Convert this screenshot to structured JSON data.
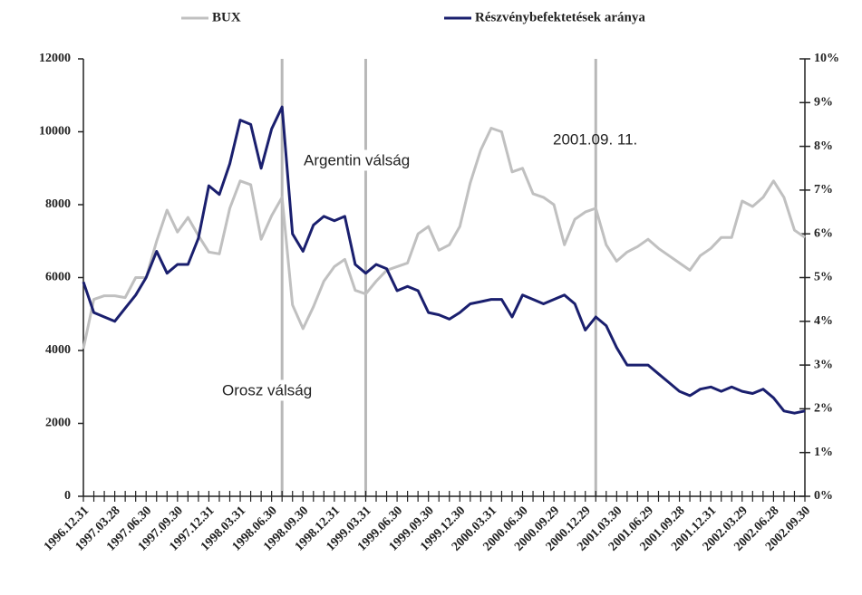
{
  "chart_data": {
    "type": "line",
    "categories": [
      "1996.12.31",
      null,
      null,
      "1997.03.28",
      null,
      null,
      "1997.06.30",
      null,
      null,
      "1997.09.30",
      null,
      null,
      "1997.12.31",
      null,
      null,
      "1998.03.31",
      null,
      null,
      "1998.06.30",
      null,
      null,
      "1998.09.30",
      null,
      null,
      "1998.12.31",
      null,
      null,
      "1999.03.31",
      null,
      null,
      "1999.06.30",
      null,
      null,
      "1999.09.30",
      null,
      null,
      "1999.12.30",
      null,
      null,
      "2000.03.31",
      null,
      null,
      "2000.06.30",
      null,
      null,
      "2000.09.29",
      null,
      null,
      "2000.12.29",
      null,
      null,
      "2001.03.30",
      null,
      null,
      "2001.06.29",
      null,
      null,
      "2001.09.28",
      null,
      null,
      "2001.12.31",
      null,
      null,
      "2002.03.29",
      null,
      null,
      "2002.06.28",
      null,
      null,
      "2002.09.30"
    ],
    "series": [
      {
        "name": "BUX",
        "color": "#c0c0c0",
        "values": [
          4050,
          5400,
          5500,
          5500,
          5450,
          6000,
          6000,
          7000,
          7850,
          7250,
          7650,
          7150,
          6700,
          6650,
          7900,
          8650,
          8550,
          7050,
          7700,
          8200,
          5250,
          4600,
          5200,
          5900,
          6300,
          6500,
          5650,
          5550,
          5900,
          6200,
          6300,
          6400,
          7200,
          7400,
          6750,
          6900,
          7400,
          8600,
          9500,
          10100,
          10000,
          8900,
          9000,
          8300,
          8200,
          8000,
          6900,
          7600,
          7800,
          7900,
          6900,
          6450,
          6700,
          6850,
          7050,
          6800,
          6600,
          6400,
          6200,
          6600,
          6800,
          7100,
          7100,
          8100,
          7950,
          8200,
          8650,
          8200,
          7300,
          7100
        ]
      },
      {
        "name": "Részvénybefektetések aránya",
        "color": "#1a1f6e",
        "axis": "y2",
        "values": [
          4.9,
          4.2,
          4.1,
          4.0,
          4.3,
          4.6,
          5.0,
          5.6,
          5.1,
          5.3,
          5.3,
          5.9,
          7.1,
          6.9,
          7.6,
          8.6,
          8.5,
          7.5,
          8.4,
          8.9,
          6.0,
          5.6,
          6.2,
          6.4,
          6.3,
          6.4,
          5.3,
          5.1,
          5.3,
          5.2,
          4.7,
          4.8,
          4.7,
          4.2,
          4.15,
          4.05,
          4.2,
          4.4,
          4.45,
          4.5,
          4.5,
          4.1,
          4.6,
          4.5,
          4.4,
          4.5,
          4.6,
          4.4,
          3.8,
          4.1,
          3.9,
          3.4,
          3.0,
          3.0,
          3.0,
          2.8,
          2.6,
          2.4,
          2.3,
          2.45,
          2.5,
          2.4,
          2.5,
          2.4,
          2.35,
          2.45,
          2.25,
          1.95,
          1.9,
          1.95
        ]
      }
    ],
    "ylim": [
      0,
      12000
    ],
    "yticks": [
      0,
      2000,
      4000,
      6000,
      8000,
      10000,
      12000
    ],
    "y2lim": [
      0,
      10
    ],
    "y2ticks": [
      {
        "value": 0,
        "label": "0%"
      },
      {
        "value": 1,
        "label": "1%"
      },
      {
        "value": 2,
        "label": "2%"
      },
      {
        "value": 3,
        "label": "3%"
      },
      {
        "value": 4,
        "label": "4%"
      },
      {
        "value": 5,
        "label": "5%"
      },
      {
        "value": 6,
        "label": "6%"
      },
      {
        "value": 7,
        "label": "7%"
      },
      {
        "value": 8,
        "label": "8%"
      },
      {
        "value": 9,
        "label": "9%"
      },
      {
        "value": 10,
        "label": "10%"
      }
    ],
    "annotations": [
      "Orosz válság",
      "Argentin válság",
      "2001.09. 11."
    ],
    "legend": "top"
  }
}
